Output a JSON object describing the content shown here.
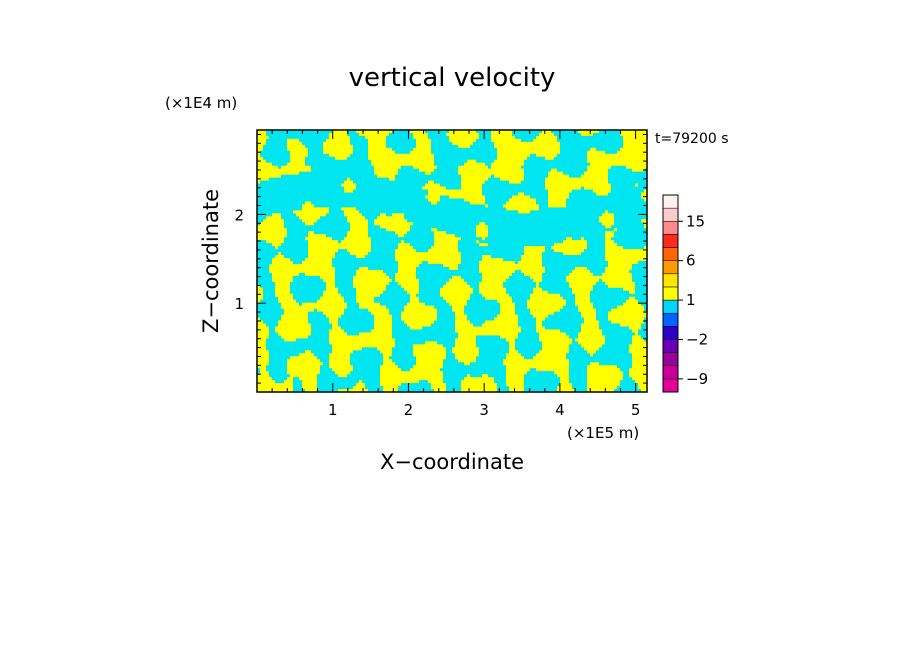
{
  "chart_data": {
    "type": "heatmap",
    "title": "vertical velocity",
    "time_label": "t=79200 s",
    "xlabel": "X−coordinate",
    "ylabel": "Z−coordinate",
    "x_unit": "(×1E5 m)",
    "y_unit": "(×1E4 m)",
    "xlim": [
      0,
      5.15
    ],
    "ylim": [
      0,
      2.95
    ],
    "x_ticks": [
      1,
      2,
      3,
      4,
      5
    ],
    "x_tick_labels": [
      "1",
      "2",
      "3",
      "4",
      "5"
    ],
    "y_ticks": [
      1,
      2
    ],
    "y_tick_labels": [
      "1",
      "2"
    ],
    "colorbar": {
      "levels": [
        -12,
        -9,
        -6,
        -4,
        -2,
        -1,
        0,
        1,
        2,
        4,
        6,
        9,
        12,
        15,
        20
      ],
      "colors": [
        "#e6009a",
        "#c8009a",
        "#9a009a",
        "#6a00b4",
        "#2a00c8",
        "#0064ff",
        "#00d4ff",
        "#ffff00",
        "#ffe600",
        "#ff9a00",
        "#ff6400",
        "#ff2a1e",
        "#ff8a8a",
        "#ffcccc",
        "#fff0f0"
      ],
      "labels": [
        {
          "value": 15,
          "text": "15"
        },
        {
          "value": 6,
          "text": "6"
        },
        {
          "value": 1,
          "text": "1"
        },
        {
          "value": -2,
          "text": "−2"
        },
        {
          "value": -9,
          "text": "−9"
        }
      ]
    },
    "field": {
      "dominant_positive_color": "#ffff00",
      "dominant_negative_color": "#00e6f0"
    }
  }
}
